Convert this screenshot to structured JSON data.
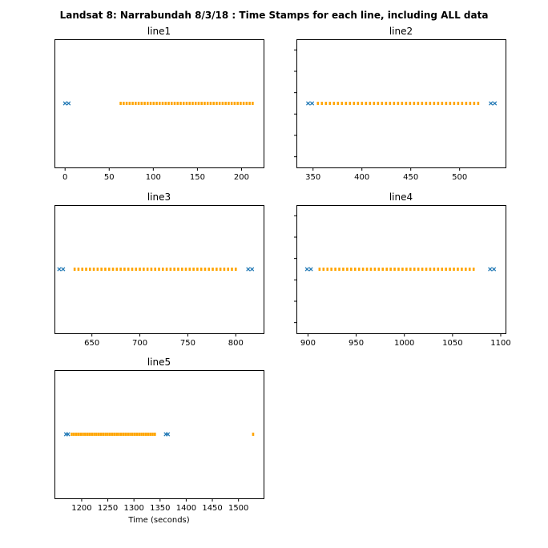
{
  "figure": {
    "title": "Landsat 8: Narrabundah 8/3/18 : Time Stamps for each line, including ALL data"
  },
  "colors": {
    "marker_x": "#1f77b4",
    "marker_sq": "#ffa500"
  },
  "chart_data": [
    {
      "type": "scatter",
      "title": "line1",
      "xlabel": "",
      "ylabel": "",
      "xlim": [
        -12,
        225
      ],
      "xticks": [
        0,
        50,
        100,
        150,
        200
      ],
      "show_yticks": false,
      "series": [
        {
          "marker": "x",
          "x": [
            0,
            4
          ]
        },
        {
          "marker": "square",
          "x_range": [
            63,
            214
          ],
          "x_step": 3.4
        }
      ]
    },
    {
      "type": "scatter",
      "title": "line2",
      "xlabel": "",
      "ylabel": "",
      "xlim": [
        333,
        547
      ],
      "xticks": [
        350,
        400,
        450,
        500
      ],
      "show_yticks": true,
      "series": [
        {
          "marker": "x",
          "x": [
            345,
            349,
            532,
            536
          ]
        },
        {
          "marker": "square",
          "x_range": [
            355,
            519
          ],
          "x_step": 4.1
        }
      ]
    },
    {
      "type": "scatter",
      "title": "line3",
      "xlabel": "",
      "ylabel": "",
      "xlim": [
        611,
        829
      ],
      "xticks": [
        650,
        700,
        750,
        800
      ],
      "show_yticks": false,
      "series": [
        {
          "marker": "x",
          "x": [
            616,
            620,
            813,
            817
          ]
        },
        {
          "marker": "square",
          "x_range": [
            632,
            803
          ],
          "x_step": 4.0
        }
      ]
    },
    {
      "type": "scatter",
      "title": "line4",
      "xlabel": "",
      "ylabel": "",
      "xlim": [
        888,
        1105
      ],
      "xticks": [
        900,
        950,
        1000,
        1050,
        1100
      ],
      "show_yticks": true,
      "series": [
        {
          "marker": "x",
          "x": [
            899,
            903,
            1089,
            1093
          ]
        },
        {
          "marker": "square",
          "x_range": [
            912,
            1075
          ],
          "x_step": 4.1
        }
      ]
    },
    {
      "type": "scatter",
      "title": "line5",
      "xlabel": "Time (seconds)",
      "ylabel": "",
      "xlim": [
        1148,
        1548
      ],
      "xticks": [
        1200,
        1250,
        1300,
        1350,
        1400,
        1450,
        1500
      ],
      "show_yticks": false,
      "series": [
        {
          "marker": "x",
          "x": [
            1170,
            1174,
            1361,
            1365
          ]
        },
        {
          "marker": "square",
          "x_range": [
            1181,
            1342
          ],
          "x_step": 4.3,
          "x_extra": [
            1528
          ]
        }
      ]
    }
  ]
}
